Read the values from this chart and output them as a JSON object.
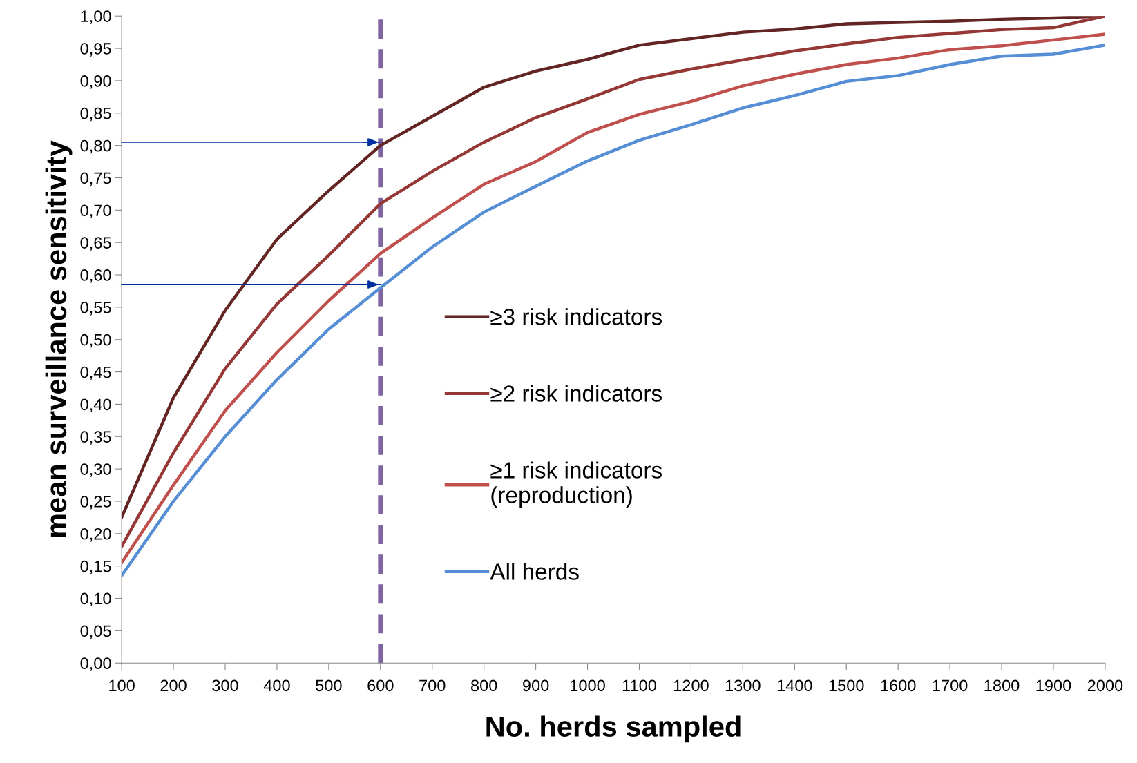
{
  "chart_data": {
    "type": "line",
    "xlabel": "No. herds sampled",
    "ylabel": "mean surveillance sensitivity",
    "x": [
      100,
      200,
      300,
      400,
      500,
      600,
      700,
      800,
      900,
      1000,
      1100,
      1200,
      1300,
      1400,
      1500,
      1600,
      1700,
      1800,
      1900,
      2000
    ],
    "series": [
      {
        "name": "≥3 risk indicators",
        "color": "#632523",
        "values": [
          0.225,
          0.41,
          0.545,
          0.655,
          0.73,
          0.8,
          0.845,
          0.89,
          0.915,
          0.933,
          0.955,
          0.965,
          0.975,
          0.98,
          0.988,
          0.99,
          0.992,
          0.995,
          0.997,
          1.0
        ]
      },
      {
        "name": "≥2 risk indicators",
        "color": "#953735",
        "values": [
          0.18,
          0.325,
          0.455,
          0.555,
          0.63,
          0.71,
          0.76,
          0.805,
          0.843,
          0.872,
          0.902,
          0.918,
          0.932,
          0.946,
          0.957,
          0.967,
          0.973,
          0.979,
          0.982,
          1.0
        ]
      },
      {
        "name": "≥1 risk indicators\n(reproduction)",
        "color": "#c0504d",
        "values": [
          0.155,
          0.275,
          0.39,
          0.48,
          0.56,
          0.633,
          0.688,
          0.74,
          0.775,
          0.82,
          0.848,
          0.868,
          0.892,
          0.91,
          0.925,
          0.935,
          0.948,
          0.954,
          0.963,
          0.972
        ]
      },
      {
        "name": "All herds",
        "color": "#558ed5",
        "values": [
          0.135,
          0.25,
          0.35,
          0.438,
          0.516,
          0.58,
          0.643,
          0.697,
          0.737,
          0.776,
          0.808,
          0.832,
          0.858,
          0.877,
          0.899,
          0.908,
          0.925,
          0.938,
          0.941,
          0.955
        ]
      }
    ],
    "xlim": [
      100,
      2000
    ],
    "xticks": [
      100,
      200,
      300,
      400,
      500,
      600,
      700,
      800,
      900,
      1000,
      1100,
      1200,
      1300,
      1400,
      1500,
      1600,
      1700,
      1800,
      1900,
      2000
    ],
    "ylim": [
      0,
      1
    ],
    "yticks": [
      {
        "value": 0,
        "label": "0,00"
      },
      {
        "value": 0.05,
        "label": "0,05"
      },
      {
        "value": 0.1,
        "label": "0,10"
      },
      {
        "value": 0.15,
        "label": "0,15"
      },
      {
        "value": 0.2,
        "label": "0,20"
      },
      {
        "value": 0.25,
        "label": "0,25"
      },
      {
        "value": 0.3,
        "label": "0,30"
      },
      {
        "value": 0.35,
        "label": "0,35"
      },
      {
        "value": 0.4,
        "label": "0,40"
      },
      {
        "value": 0.45,
        "label": "0,45"
      },
      {
        "value": 0.5,
        "label": "0,50"
      },
      {
        "value": 0.55,
        "label": "0,55"
      },
      {
        "value": 0.6,
        "label": "0,60"
      },
      {
        "value": 0.65,
        "label": "0,65"
      },
      {
        "value": 0.7,
        "label": "0,70"
      },
      {
        "value": 0.75,
        "label": "0,75"
      },
      {
        "value": 0.8,
        "label": "0,80"
      },
      {
        "value": 0.85,
        "label": "0,85"
      },
      {
        "value": 0.9,
        "label": "0,90"
      },
      {
        "value": 0.95,
        "label": "0,95"
      },
      {
        "value": 1,
        "label": "1,00"
      }
    ],
    "ref_lines": [
      {
        "axis": "x",
        "value": 600,
        "color": "#8064a2",
        "line_style": "dashed"
      },
      {
        "axis": "y",
        "value": 0.805,
        "color": "#002fa0",
        "line_style": "solid"
      },
      {
        "axis": "y",
        "value": 0.585,
        "color": "#002fa0",
        "line_style": "solid"
      }
    ],
    "grid": false,
    "legend": "center",
    "marker": "none",
    "line_style": "solid"
  }
}
